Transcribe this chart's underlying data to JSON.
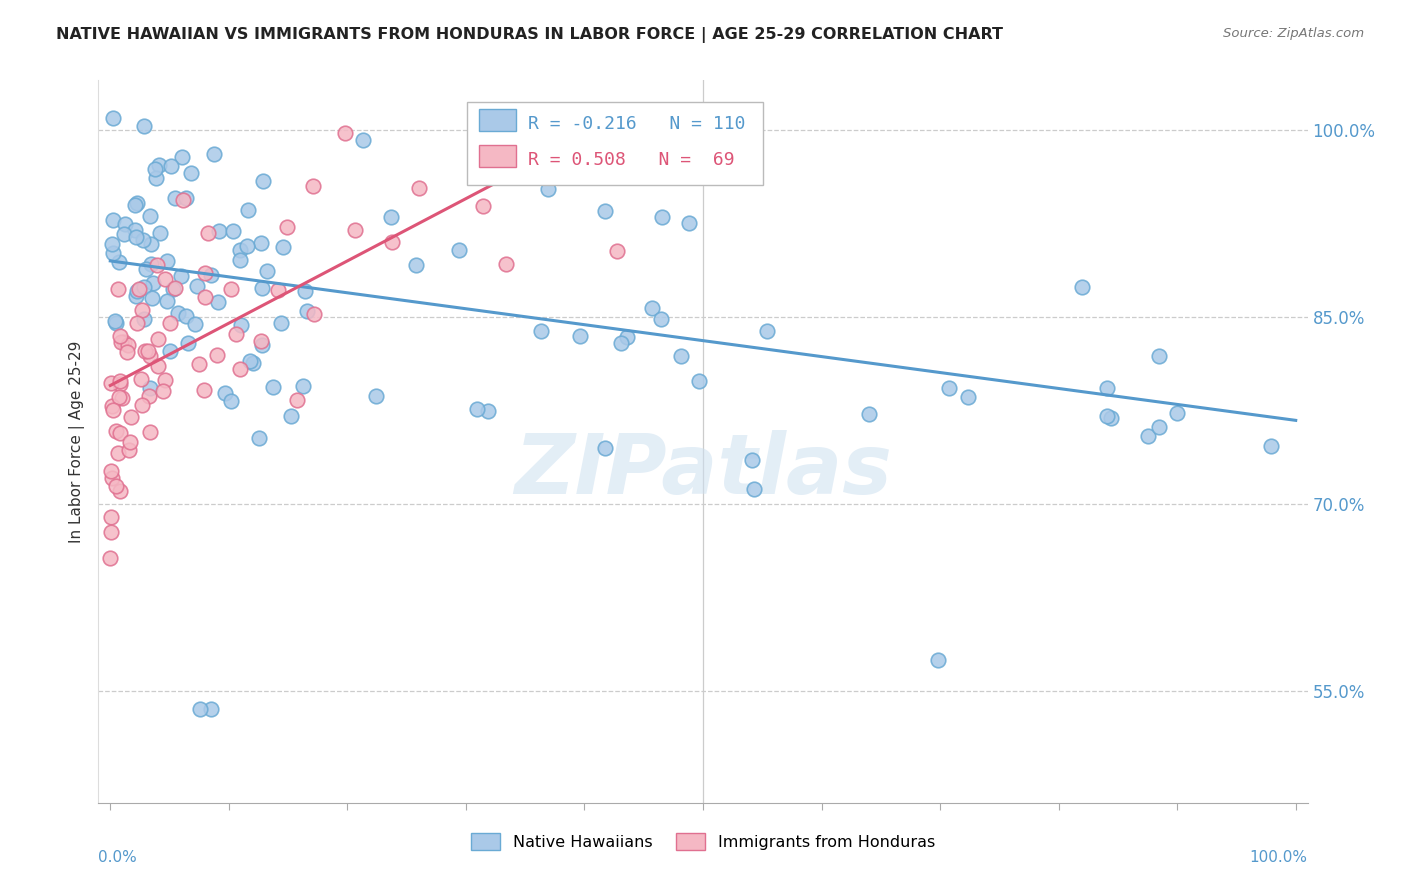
{
  "title": "NATIVE HAWAIIAN VS IMMIGRANTS FROM HONDURAS IN LABOR FORCE | AGE 25-29 CORRELATION CHART",
  "source": "Source: ZipAtlas.com",
  "ylabel": "In Labor Force | Age 25-29",
  "blue_R": -0.216,
  "blue_N": 110,
  "pink_R": 0.508,
  "pink_N": 69,
  "blue_color": "#aac9e8",
  "pink_color": "#f5b8c4",
  "blue_edge_color": "#6aaad4",
  "pink_edge_color": "#e07090",
  "blue_line_color": "#5599cc",
  "pink_line_color": "#dd5577",
  "legend_label_blue": "Native Hawaiians",
  "legend_label_pink": "Immigrants from Honduras",
  "watermark": "ZIPatlas",
  "ytick_vals": [
    1.0,
    0.85,
    0.7,
    0.55
  ],
  "ytick_labels": [
    "100.0%",
    "85.0%",
    "70.0%",
    "55.0%"
  ],
  "xlim": [
    -0.01,
    1.01
  ],
  "ylim": [
    0.46,
    1.04
  ],
  "blue_line_x0": 0.0,
  "blue_line_y0": 0.895,
  "blue_line_x1": 1.0,
  "blue_line_y1": 0.767,
  "pink_line_x0": 0.0,
  "pink_line_y0": 0.795,
  "pink_line_x1": 0.42,
  "pink_line_y1": 1.005
}
